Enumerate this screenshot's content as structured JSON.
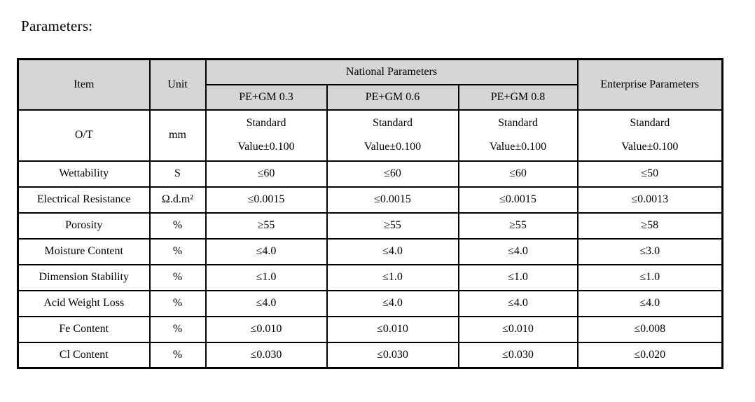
{
  "page": {
    "title": "Parameters:"
  },
  "style": {
    "header_bg": "#d5d5d5",
    "border_color": "#000000",
    "text_color": "#000000"
  },
  "table": {
    "header": {
      "item": "Item",
      "unit": "Unit",
      "national": "National Parameters",
      "enterprise": "Enterprise Parameters",
      "subcolumns": [
        "PE+GM 0.3",
        "PE+GM 0.6",
        "PE+GM 0.8"
      ]
    },
    "rows": [
      {
        "item": "O/T",
        "unit": "mm",
        "values": [
          "Standard\nValue±0.100",
          "Standard\nValue±0.100",
          "Standard\nValue±0.100",
          "Standard\nValue±0.100"
        ]
      },
      {
        "item": "Wettability",
        "unit": "S",
        "values": [
          "≤60",
          "≤60",
          "≤60",
          "≤50"
        ]
      },
      {
        "item": "Electrical Resistance",
        "unit": "Ω.d.m²",
        "values": [
          "≤0.0015",
          "≤0.0015",
          "≤0.0015",
          "≤0.0013"
        ]
      },
      {
        "item": "Porosity",
        "unit": "%",
        "values": [
          "≥55",
          "≥55",
          "≥55",
          "≥58"
        ]
      },
      {
        "item": "Moisture Content",
        "unit": "%",
        "values": [
          "≤4.0",
          "≤4.0",
          "≤4.0",
          "≤3.0"
        ]
      },
      {
        "item": "Dimension Stability",
        "unit": "%",
        "values": [
          "≤1.0",
          "≤1.0",
          "≤1.0",
          "≤1.0"
        ]
      },
      {
        "item": "Acid Weight Loss",
        "unit": "%",
        "values": [
          "≤4.0",
          "≤4.0",
          "≤4.0",
          "≤4.0"
        ]
      },
      {
        "item": "Fe Content",
        "unit": "%",
        "values": [
          "≤0.010",
          "≤0.010",
          "≤0.010",
          "≤0.008"
        ]
      },
      {
        "item": "Cl Content",
        "unit": "%",
        "values": [
          "≤0.030",
          "≤0.030",
          "≤0.030",
          "≤0.020"
        ]
      }
    ]
  }
}
